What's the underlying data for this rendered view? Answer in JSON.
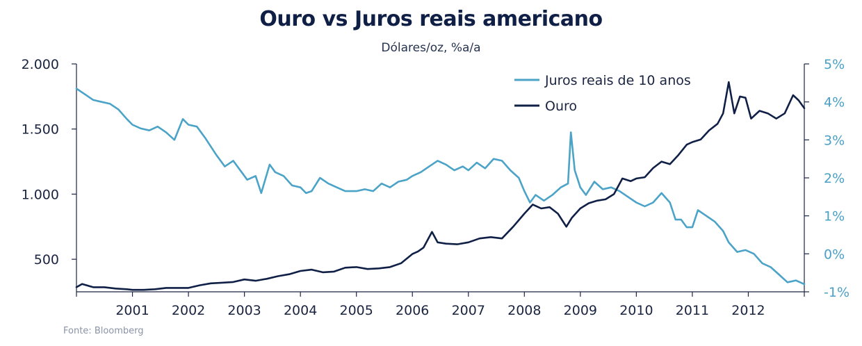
{
  "chart_data": {
    "type": "line",
    "title": "Ouro vs Juros reais americano",
    "subtitle": "Dólares/oz, %a/a",
    "source": "Fonte: Bloomberg",
    "legend_position": "top-right",
    "grid": false,
    "x_ticks": [
      "2001",
      "2002",
      "2003",
      "2004",
      "2005",
      "2006",
      "2007",
      "2008",
      "2009",
      "2010",
      "2011",
      "2012"
    ],
    "xlim": [
      2000.0,
      2013.0
    ],
    "left_axis": {
      "ylim": [
        250,
        2000
      ],
      "ticks": [
        500,
        1000,
        1500,
        2000
      ],
      "tick_labels": [
        "500",
        "1.000",
        "1.500",
        "2.000"
      ]
    },
    "right_axis": {
      "ylim": [
        -1.0,
        5.0
      ],
      "ticks": [
        -1,
        0,
        1,
        2,
        3,
        4,
        5
      ],
      "tick_labels": [
        "-1%",
        "0%",
        "1%",
        "2%",
        "3%",
        "4%",
        "5%"
      ]
    },
    "colors": {
      "juros": "#4ba3c7",
      "ouro": "#0f1f45"
    },
    "series": [
      {
        "name": "Juros reais de 10 anos",
        "axis": "right",
        "x": [
          2000.0,
          2000.15,
          2000.3,
          2000.45,
          2000.6,
          2000.75,
          2000.9,
          2001.0,
          2001.15,
          2001.3,
          2001.45,
          2001.6,
          2001.75,
          2001.9,
          2002.0,
          2002.15,
          2002.3,
          2002.5,
          2002.65,
          2002.8,
          2002.95,
          2003.05,
          2003.2,
          2003.3,
          2003.45,
          2003.55,
          2003.7,
          2003.85,
          2004.0,
          2004.1,
          2004.2,
          2004.35,
          2004.5,
          2004.65,
          2004.8,
          2005.0,
          2005.15,
          2005.3,
          2005.45,
          2005.6,
          2005.75,
          2005.9,
          2006.0,
          2006.15,
          2006.3,
          2006.45,
          2006.6,
          2006.75,
          2006.9,
          2007.0,
          2007.15,
          2007.3,
          2007.45,
          2007.6,
          2007.75,
          2007.9,
          2008.0,
          2008.1,
          2008.2,
          2008.35,
          2008.5,
          2008.65,
          2008.78,
          2008.83,
          2008.9,
          2009.0,
          2009.1,
          2009.25,
          2009.4,
          2009.55,
          2009.7,
          2009.85,
          2010.0,
          2010.15,
          2010.3,
          2010.45,
          2010.6,
          2010.7,
          2010.8,
          2010.9,
          2011.0,
          2011.1,
          2011.25,
          2011.4,
          2011.55,
          2011.65,
          2011.8,
          2011.95,
          2012.1,
          2012.25,
          2012.4,
          2012.55,
          2012.7,
          2012.85,
          2013.0
        ],
        "values": [
          4.35,
          4.2,
          4.05,
          4.0,
          3.95,
          3.8,
          3.55,
          3.4,
          3.3,
          3.25,
          3.35,
          3.2,
          3.0,
          3.55,
          3.4,
          3.35,
          3.05,
          2.6,
          2.3,
          2.45,
          2.15,
          1.95,
          2.05,
          1.6,
          2.35,
          2.15,
          2.05,
          1.8,
          1.75,
          1.6,
          1.65,
          2.0,
          1.85,
          1.75,
          1.65,
          1.65,
          1.7,
          1.65,
          1.85,
          1.75,
          1.9,
          1.95,
          2.05,
          2.15,
          2.3,
          2.45,
          2.35,
          2.2,
          2.3,
          2.2,
          2.4,
          2.25,
          2.5,
          2.45,
          2.2,
          2.0,
          1.65,
          1.35,
          1.55,
          1.4,
          1.55,
          1.75,
          1.85,
          3.2,
          2.2,
          1.75,
          1.55,
          1.9,
          1.7,
          1.75,
          1.65,
          1.5,
          1.35,
          1.25,
          1.35,
          1.6,
          1.35,
          0.9,
          0.9,
          0.7,
          0.7,
          1.15,
          1.0,
          0.85,
          0.6,
          0.3,
          0.05,
          0.1,
          0.0,
          -0.25,
          -0.35,
          -0.55,
          -0.75,
          -0.7,
          -0.8
        ]
      },
      {
        "name": "Ouro",
        "axis": "left",
        "x": [
          2000.0,
          2000.1,
          2000.3,
          2000.5,
          2000.7,
          2000.9,
          2001.0,
          2001.2,
          2001.4,
          2001.6,
          2001.8,
          2002.0,
          2002.2,
          2002.4,
          2002.6,
          2002.8,
          2003.0,
          2003.2,
          2003.4,
          2003.6,
          2003.8,
          2004.0,
          2004.2,
          2004.4,
          2004.6,
          2004.8,
          2005.0,
          2005.2,
          2005.4,
          2005.6,
          2005.8,
          2006.0,
          2006.1,
          2006.2,
          2006.35,
          2006.45,
          2006.6,
          2006.8,
          2007.0,
          2007.2,
          2007.4,
          2007.6,
          2007.8,
          2008.0,
          2008.15,
          2008.3,
          2008.45,
          2008.6,
          2008.75,
          2008.85,
          2009.0,
          2009.15,
          2009.3,
          2009.45,
          2009.6,
          2009.75,
          2009.9,
          2010.0,
          2010.15,
          2010.3,
          2010.45,
          2010.6,
          2010.75,
          2010.9,
          2011.0,
          2011.15,
          2011.3,
          2011.45,
          2011.55,
          2011.65,
          2011.75,
          2011.85,
          2011.95,
          2012.05,
          2012.2,
          2012.35,
          2012.5,
          2012.65,
          2012.8,
          2012.9,
          2013.0
        ],
        "values": [
          285,
          310,
          285,
          285,
          275,
          270,
          265,
          265,
          270,
          280,
          280,
          280,
          300,
          315,
          320,
          325,
          345,
          335,
          350,
          370,
          385,
          410,
          420,
          400,
          405,
          435,
          440,
          425,
          430,
          440,
          470,
          540,
          560,
          590,
          710,
          630,
          620,
          615,
          630,
          660,
          670,
          660,
          750,
          850,
          920,
          890,
          900,
          850,
          750,
          820,
          890,
          930,
          950,
          960,
          1000,
          1120,
          1100,
          1120,
          1130,
          1200,
          1250,
          1230,
          1300,
          1380,
          1400,
          1420,
          1490,
          1540,
          1620,
          1860,
          1620,
          1750,
          1740,
          1580,
          1640,
          1620,
          1580,
          1620,
          1760,
          1720,
          1660
        ]
      }
    ]
  }
}
